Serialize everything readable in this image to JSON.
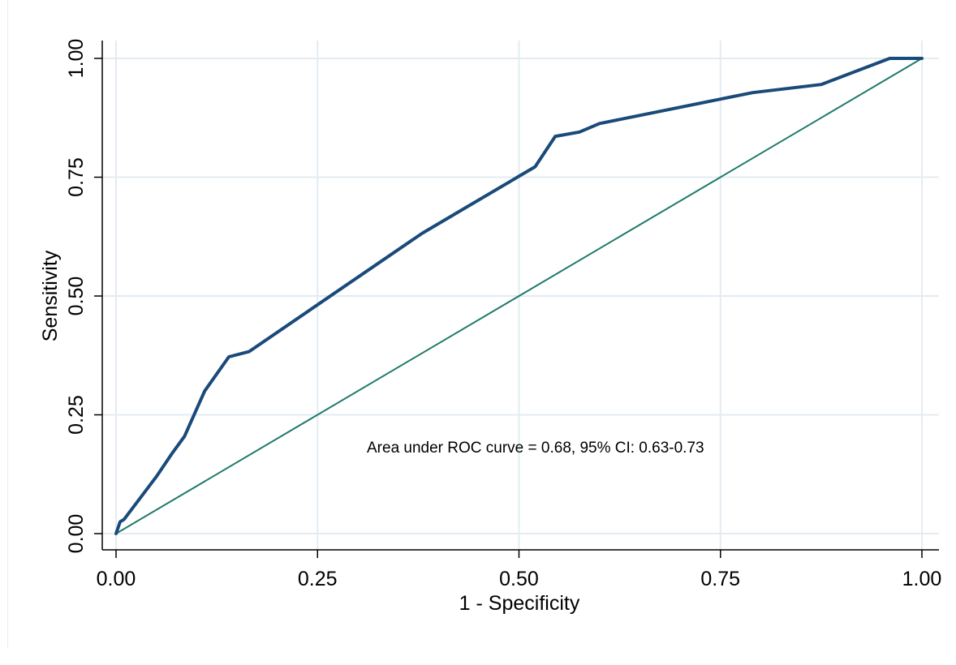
{
  "chart_data": {
    "type": "line",
    "title": "",
    "xlabel": "1 - Specificity",
    "ylabel": "Sensitivity",
    "xlim": [
      0,
      1
    ],
    "ylim": [
      0,
      1
    ],
    "x_ticks": [
      "0.00",
      "0.25",
      "0.50",
      "0.75",
      "1.00"
    ],
    "y_ticks": [
      "0.00",
      "0.25",
      "0.50",
      "0.75",
      "1.00"
    ],
    "grid": true,
    "legend": "none",
    "annotation": "Area under ROC curve = 0.68, 95% CI: 0.63-0.73",
    "series": [
      {
        "color": "#1a4a7a",
        "points": [
          [
            0,
            0
          ],
          [
            0.005,
            0.025
          ],
          [
            0.01,
            0.03
          ],
          [
            0.05,
            0.12
          ],
          [
            0.07,
            0.17
          ],
          [
            0.085,
            0.205
          ],
          [
            0.11,
            0.3
          ],
          [
            0.14,
            0.372
          ],
          [
            0.165,
            0.383
          ],
          [
            0.38,
            0.632
          ],
          [
            0.52,
            0.772
          ],
          [
            0.545,
            0.836
          ],
          [
            0.575,
            0.845
          ],
          [
            0.6,
            0.863
          ],
          [
            0.79,
            0.928
          ],
          [
            0.875,
            0.945
          ],
          [
            0.96,
            1.0
          ],
          [
            1.0,
            1.0
          ]
        ]
      },
      {
        "color": "#1f7a6a",
        "points": [
          [
            0,
            0
          ],
          [
            1,
            1
          ]
        ]
      }
    ]
  }
}
